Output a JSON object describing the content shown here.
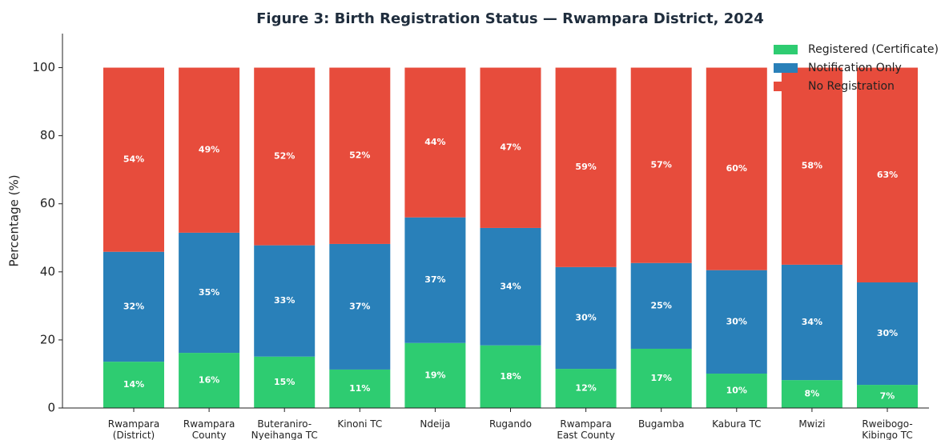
{
  "chart_data": {
    "type": "stacked_bar",
    "title": "Figure 3: Birth Registration Status — Rwampara District, 2024",
    "y_label": "Percentage (%)",
    "categories": [
      "Rwampara\n(District)",
      "Rwampara\nCounty",
      "Buteraniro-\nNyeihanga TC",
      "Kinoni TC",
      "Ndeija",
      "Rugando",
      "Rwampara\nEast County",
      "Bugamba",
      "Kabura TC",
      "Mwizi",
      "Rweibogo-\nKibingo TC"
    ],
    "series": [
      {
        "name": "Registered (Certificate)",
        "color": "#2ecc71",
        "values": [
          13.6,
          16.2,
          15.1,
          11.3,
          19.1,
          18.4,
          11.5,
          17.4,
          10.1,
          8.2,
          6.8
        ],
        "value_labels": [
          "14%",
          "16%",
          "15%",
          "11%",
          "19%",
          "18%",
          "12%",
          "17%",
          "10%",
          "8%",
          "7%"
        ]
      },
      {
        "name": "Notification Only",
        "color": "#2980b9",
        "values": [
          32.3,
          35.3,
          32.7,
          36.9,
          36.9,
          34.5,
          29.9,
          25.2,
          30.4,
          33.9,
          30.1
        ],
        "value_labels": [
          "32%",
          "35%",
          "33%",
          "37%",
          "37%",
          "34%",
          "30%",
          "25%",
          "30%",
          "34%",
          "30%"
        ]
      },
      {
        "name": "No Registration",
        "color": "#e74c3c",
        "values": [
          54.1,
          48.5,
          52.2,
          51.8,
          44.0,
          47.1,
          58.6,
          57.4,
          59.5,
          57.9,
          63.1
        ],
        "value_labels": [
          "54%",
          "49%",
          "52%",
          "52%",
          "44%",
          "47%",
          "59%",
          "57%",
          "60%",
          "58%",
          "63%"
        ]
      }
    ],
    "ylim": [
      0,
      110
    ],
    "yticks": [
      0,
      20,
      40,
      60,
      80,
      100
    ],
    "legend": "upper right"
  }
}
